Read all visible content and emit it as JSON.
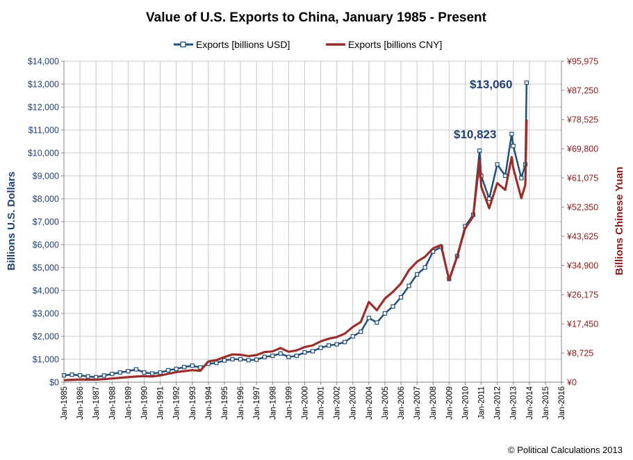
{
  "chart_data": {
    "type": "line",
    "title": "Value of U.S. Exports to China, January 1985 - Present",
    "ylabel": "Billions U.S. Dollars",
    "ylabel_right": "Billions Chinese Yuan",
    "ylim": [
      0,
      14000
    ],
    "ylim_right": [
      0,
      95975
    ],
    "yticks": [
      "$0",
      "$1,000",
      "$2,000",
      "$3,000",
      "$4,000",
      "$5,000",
      "$6,000",
      "$7,000",
      "$8,000",
      "$9,000",
      "$10,000",
      "$11,000",
      "$12,000",
      "$13,000",
      "$14,000"
    ],
    "yticks_right": [
      "¥0",
      "¥8,725",
      "¥17,450",
      "¥26,175",
      "¥34,900",
      "¥43,625",
      "¥52,350",
      "¥61,075",
      "¥69,800",
      "¥78,525",
      "¥87,250",
      "¥95,975"
    ],
    "xlim": [
      1985,
      2016
    ],
    "xticks": [
      "Jan-1985",
      "Jan-1986",
      "Jan-1987",
      "Jan-1988",
      "Jan-1989",
      "Jan-1990",
      "Jan-1991",
      "Jan-1992",
      "Jan-1993",
      "Jan-1994",
      "Jan-1995",
      "Jan-1996",
      "Jan-1997",
      "Jan-1998",
      "Jan-1999",
      "Jan-2000",
      "Jan-2001",
      "Jan-2002",
      "Jan-2003",
      "Jan-2004",
      "Jan-2005",
      "Jan-2006",
      "Jan-2007",
      "Jan-2008",
      "Jan-2009",
      "Jan-2010",
      "Jan-2011",
      "Jan-2012",
      "Jan-2013",
      "Jan-2014",
      "Jan-2015",
      "Jan-2016"
    ],
    "grid": true,
    "legend": "top-center",
    "colors": {
      "usd": "#1f4e79",
      "cny": "#9b2d2a"
    },
    "series": [
      {
        "name": "Exports [billions USD]",
        "axis": "left",
        "marker": "square",
        "points": [
          [
            1985.0,
            300
          ],
          [
            1985.5,
            330
          ],
          [
            1986.0,
            300
          ],
          [
            1986.5,
            250
          ],
          [
            1987.0,
            220
          ],
          [
            1987.5,
            290
          ],
          [
            1988.0,
            360
          ],
          [
            1988.5,
            420
          ],
          [
            1989.0,
            480
          ],
          [
            1989.5,
            560
          ],
          [
            1990.0,
            420
          ],
          [
            1990.5,
            380
          ],
          [
            1991.0,
            420
          ],
          [
            1991.5,
            520
          ],
          [
            1992.0,
            580
          ],
          [
            1992.5,
            660
          ],
          [
            1993.0,
            720
          ],
          [
            1993.5,
            640
          ],
          [
            1994.0,
            800
          ],
          [
            1994.5,
            840
          ],
          [
            1995.0,
            950
          ],
          [
            1995.5,
            1000
          ],
          [
            1996.0,
            1000
          ],
          [
            1996.5,
            960
          ],
          [
            1997.0,
            980
          ],
          [
            1997.5,
            1100
          ],
          [
            1998.0,
            1150
          ],
          [
            1998.5,
            1250
          ],
          [
            1999.0,
            1100
          ],
          [
            1999.5,
            1150
          ],
          [
            2000.0,
            1300
          ],
          [
            2000.5,
            1350
          ],
          [
            2001.0,
            1500
          ],
          [
            2001.5,
            1600
          ],
          [
            2002.0,
            1650
          ],
          [
            2002.5,
            1750
          ],
          [
            2003.0,
            2000
          ],
          [
            2003.5,
            2200
          ],
          [
            2004.0,
            2800
          ],
          [
            2004.5,
            2600
          ],
          [
            2005.0,
            3000
          ],
          [
            2005.5,
            3300
          ],
          [
            2006.0,
            3700
          ],
          [
            2006.5,
            4200
          ],
          [
            2007.0,
            4700
          ],
          [
            2007.5,
            5000
          ],
          [
            2008.0,
            5700
          ],
          [
            2008.5,
            5900
          ],
          [
            2009.0,
            4500
          ],
          [
            2009.5,
            5500
          ],
          [
            2010.0,
            6800
          ],
          [
            2010.5,
            7300
          ],
          [
            2010.9,
            10100
          ],
          [
            2011.0,
            9000
          ],
          [
            2011.5,
            8000
          ],
          [
            2012.0,
            9500
          ],
          [
            2012.5,
            9000
          ],
          [
            2012.9,
            10823
          ],
          [
            2013.0,
            10300
          ],
          [
            2013.5,
            8900
          ],
          [
            2013.75,
            9500
          ],
          [
            2013.83,
            13060
          ]
        ]
      },
      {
        "name": "Exports [billions CNY]",
        "axis": "right",
        "marker": "none",
        "points": [
          [
            1985.0,
            600
          ],
          [
            1985.5,
            700
          ],
          [
            1986.0,
            800
          ],
          [
            1986.5,
            750
          ],
          [
            1987.0,
            750
          ],
          [
            1987.5,
            900
          ],
          [
            1988.0,
            1100
          ],
          [
            1988.5,
            1300
          ],
          [
            1989.0,
            1500
          ],
          [
            1989.5,
            1700
          ],
          [
            1990.0,
            1800
          ],
          [
            1990.5,
            1700
          ],
          [
            1991.0,
            2000
          ],
          [
            1991.5,
            2500
          ],
          [
            1992.0,
            3000
          ],
          [
            1992.5,
            3300
          ],
          [
            1993.0,
            3600
          ],
          [
            1993.5,
            3400
          ],
          [
            1994.0,
            6200
          ],
          [
            1994.5,
            6600
          ],
          [
            1995.0,
            7500
          ],
          [
            1995.5,
            8300
          ],
          [
            1996.0,
            8200
          ],
          [
            1996.5,
            7800
          ],
          [
            1997.0,
            8100
          ],
          [
            1997.5,
            9000
          ],
          [
            1998.0,
            9200
          ],
          [
            1998.5,
            10200
          ],
          [
            1999.0,
            9100
          ],
          [
            1999.5,
            9500
          ],
          [
            2000.0,
            10500
          ],
          [
            2000.5,
            11000
          ],
          [
            2001.0,
            12200
          ],
          [
            2001.5,
            13000
          ],
          [
            2002.0,
            13500
          ],
          [
            2002.5,
            14500
          ],
          [
            2003.0,
            16500
          ],
          [
            2003.5,
            18000
          ],
          [
            2004.0,
            24000
          ],
          [
            2004.5,
            21500
          ],
          [
            2005.0,
            25000
          ],
          [
            2005.5,
            27000
          ],
          [
            2006.0,
            29500
          ],
          [
            2006.5,
            33500
          ],
          [
            2007.0,
            36000
          ],
          [
            2007.5,
            37500
          ],
          [
            2008.0,
            40000
          ],
          [
            2008.5,
            41000
          ],
          [
            2009.0,
            30500
          ],
          [
            2009.5,
            37500
          ],
          [
            2010.0,
            46000
          ],
          [
            2010.5,
            49500
          ],
          [
            2010.9,
            66500
          ],
          [
            2011.0,
            58500
          ],
          [
            2011.5,
            52000
          ],
          [
            2012.0,
            59500
          ],
          [
            2012.5,
            57500
          ],
          [
            2012.9,
            67300
          ],
          [
            2013.0,
            64000
          ],
          [
            2013.5,
            55000
          ],
          [
            2013.75,
            59000
          ],
          [
            2013.83,
            78500
          ]
        ]
      }
    ],
    "annotations": [
      "$13,060",
      "$10,823"
    ]
  },
  "copyright": "© Political Calculations 2013"
}
